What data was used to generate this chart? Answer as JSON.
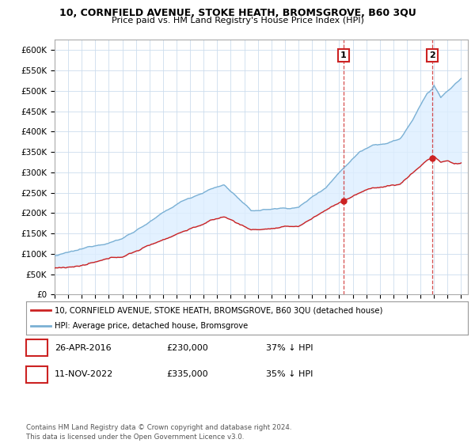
{
  "title": "10, CORNFIELD AVENUE, STOKE HEATH, BROMSGROVE, B60 3QU",
  "subtitle": "Price paid vs. HM Land Registry's House Price Index (HPI)",
  "ylabel_ticks": [
    "£0",
    "£50K",
    "£100K",
    "£150K",
    "£200K",
    "£250K",
    "£300K",
    "£350K",
    "£400K",
    "£450K",
    "£500K",
    "£550K",
    "£600K"
  ],
  "ytick_values": [
    0,
    50000,
    100000,
    150000,
    200000,
    250000,
    300000,
    350000,
    400000,
    450000,
    500000,
    550000,
    600000
  ],
  "ylim": [
    0,
    625000
  ],
  "xlim_start": 1995.0,
  "xlim_end": 2025.5,
  "hpi_color": "#7ab0d4",
  "hpi_fill_color": "#ddeeff",
  "property_color": "#cc2222",
  "marker1_date": 2016.32,
  "marker1_price": 230000,
  "marker2_date": 2022.87,
  "marker2_price": 335000,
  "marker1_label": "1",
  "marker2_label": "2",
  "legend_property": "10, CORNFIELD AVENUE, STOKE HEATH, BROMSGROVE, B60 3QU (detached house)",
  "legend_hpi": "HPI: Average price, detached house, Bromsgrove",
  "table_row1": [
    "1",
    "26-APR-2016",
    "£230,000",
    "37% ↓ HPI"
  ],
  "table_row2": [
    "2",
    "11-NOV-2022",
    "£335,000",
    "35% ↓ HPI"
  ],
  "footer": "Contains HM Land Registry data © Crown copyright and database right 2024.\nThis data is licensed under the Open Government Licence v3.0.",
  "background_color": "#ffffff",
  "grid_color": "#ccddee"
}
